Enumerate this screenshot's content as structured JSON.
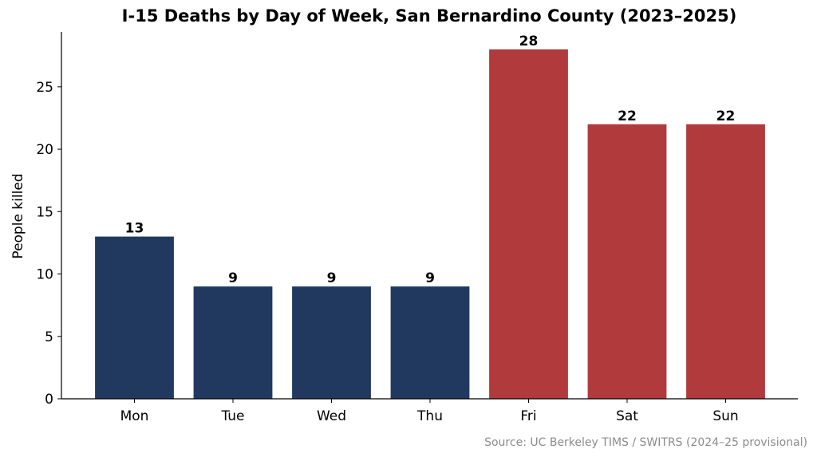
{
  "chart_data": {
    "type": "bar",
    "title": "I-15 Deaths by Day of Week, San Bernardino County (2023–2025)",
    "xlabel": "",
    "ylabel": "People killed",
    "categories": [
      "Mon",
      "Tue",
      "Wed",
      "Thu",
      "Fri",
      "Sat",
      "Sun"
    ],
    "values": [
      13,
      9,
      9,
      9,
      28,
      22,
      22
    ],
    "data_labels": [
      "13",
      "9",
      "9",
      "9",
      "28",
      "22",
      "22"
    ],
    "bar_colors": [
      "#21395f",
      "#21395f",
      "#21395f",
      "#21395f",
      "#b03a3c",
      "#b03a3c",
      "#b03a3c"
    ],
    "ylim": [
      0,
      29.4
    ],
    "yticks": [
      0,
      5,
      10,
      15,
      20,
      25
    ],
    "ytick_labels": [
      "0",
      "5",
      "10",
      "15",
      "20",
      "25"
    ],
    "grid": false,
    "legend": "none"
  },
  "source_note": "Source: UC Berkeley TIMS / SWITRS (2024–25 provisional)"
}
